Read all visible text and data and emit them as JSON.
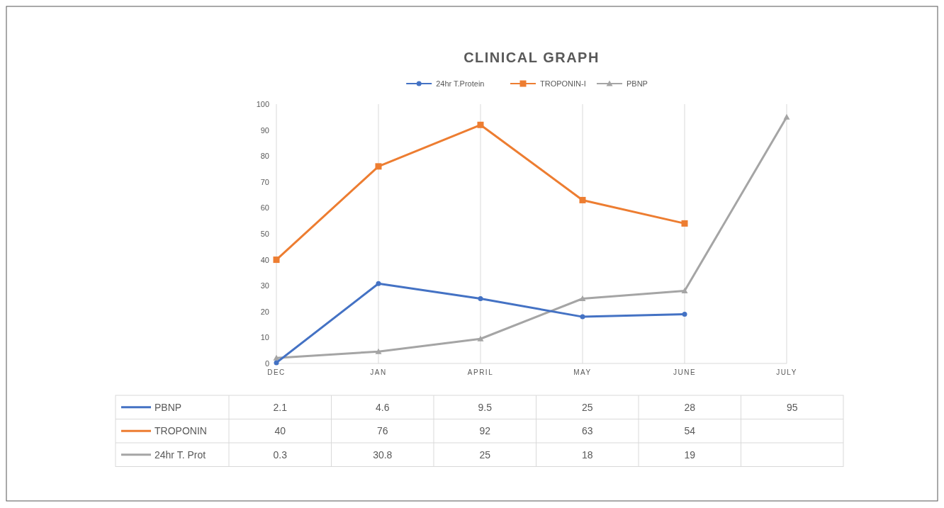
{
  "chart_data": {
    "type": "line",
    "title": "CLINICAL GRAPH",
    "categories": [
      "DEC",
      "JAN",
      "APRIL",
      "MAY",
      "JUNE",
      "JULY"
    ],
    "series": [
      {
        "name": "PBNP",
        "color": "#a5a5a5",
        "marker": "triangle",
        "values": [
          2.1,
          4.6,
          9.5,
          25,
          28,
          95
        ]
      },
      {
        "name": "TROPONIN-I",
        "color": "#ed7d31",
        "marker": "square",
        "values": [
          40,
          76,
          92,
          63,
          54,
          null
        ]
      },
      {
        "name": "24hr T.Protein",
        "color": "#4472c4",
        "marker": "circle",
        "values": [
          0.3,
          30.8,
          25,
          18,
          19,
          null
        ]
      }
    ],
    "ylim": [
      0,
      100
    ],
    "yticks": [
      0,
      10,
      20,
      30,
      40,
      50,
      60,
      70,
      80,
      90,
      100
    ],
    "grid": "x",
    "legend": "top",
    "data_labels": true,
    "annotations": [
      "PBNP",
      "TROPONIN",
      "24hr T. Prot"
    ]
  }
}
